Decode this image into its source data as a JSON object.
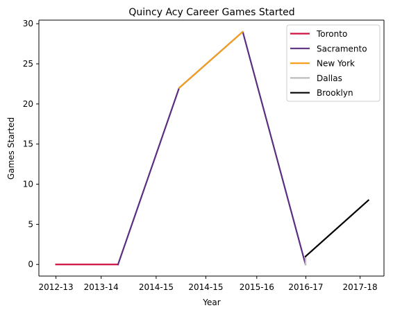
{
  "chart_data": {
    "type": "line",
    "title": "Quincy Acy Career Games Started",
    "xlabel": "Year",
    "ylabel": "Games Started",
    "ylim": [
      -1.45,
      30.45
    ],
    "yticks": [
      0,
      5,
      10,
      15,
      20,
      25,
      30
    ],
    "xtick_labels": [
      "2012-13",
      "2013-14",
      "2014-15",
      "2014-15",
      "2015-16",
      "2016-17",
      "2017-18"
    ],
    "grid": false,
    "legend_position": "top-right",
    "series": [
      {
        "name": "Toronto",
        "color": "#ce1141",
        "points": [
          {
            "x": "2012-13",
            "y": 0
          },
          {
            "x": "2013-14",
            "y": 0
          }
        ]
      },
      {
        "name": "Sacramento",
        "color": "#5a2d81",
        "points": [
          {
            "x": "2013-14",
            "y": 0
          },
          {
            "x": "2014-15",
            "y": 22
          },
          {
            "x": "2015-16",
            "y": 29
          },
          {
            "x": "2016-17",
            "y": 0
          }
        ]
      },
      {
        "name": "New York",
        "color": "#f5a01e",
        "points": [
          {
            "x": "2014-15",
            "y": 22
          },
          {
            "x": "2015-16",
            "y": 29
          }
        ]
      },
      {
        "name": "Dallas",
        "color": "#bbbbbb",
        "points": [
          {
            "x": "2016-17",
            "y": 1
          },
          {
            "x": "2016-17",
            "y": 0
          }
        ]
      },
      {
        "name": "Brooklyn",
        "color": "#000000",
        "points": [
          {
            "x": "2016-17",
            "y": 1
          },
          {
            "x": "2017-18",
            "y": 8
          }
        ]
      }
    ]
  }
}
